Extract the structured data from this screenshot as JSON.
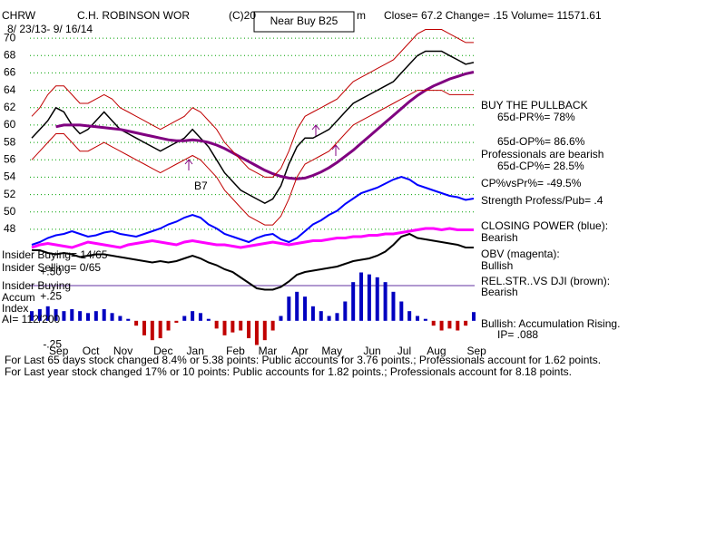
{
  "chart_data": {
    "type": "line",
    "ticker": "CHRW",
    "company": "C.H. ROBINSON WOR",
    "copyright": "(C)20",
    "signal": "Near Buy B25",
    "fragment": "m",
    "quote": "Close=  67.2  Change= .15 Volume= 11571.61",
    "date_range": "8/ 23/13- 9/ 16/14",
    "categories": [
      null,
      null,
      "Sep",
      null,
      null,
      null,
      "Oct",
      null,
      null,
      null,
      "Nov",
      null,
      null,
      null,
      null,
      "Dec",
      null,
      null,
      null,
      "Jan",
      null,
      null,
      null,
      null,
      "Feb",
      null,
      null,
      null,
      "Mar",
      null,
      null,
      null,
      "Apr",
      null,
      null,
      null,
      "May",
      null,
      null,
      null,
      null,
      "Jun",
      null,
      null,
      null,
      "Jul",
      null,
      null,
      null,
      "Aug",
      null,
      null,
      null,
      null,
      "Sep",
      null
    ],
    "ylim": [
      47,
      71
    ],
    "yticks": [
      48,
      50,
      52,
      54,
      56,
      58,
      60,
      62,
      64,
      66,
      68,
      70
    ],
    "grid": true,
    "y2lim": [
      0,
      100
    ],
    "series": [
      {
        "color": "#000000",
        "values": [
          58.5,
          59.5,
          60.5,
          62,
          61.5,
          60,
          59,
          59.5,
          60.5,
          61.5,
          60.5,
          59.5,
          59,
          58.5,
          58,
          57.5,
          57,
          57.5,
          58,
          58.5,
          59.5,
          58.5,
          57.5,
          56,
          54.5,
          53.5,
          52.5,
          52,
          51.5,
          51,
          51.5,
          53,
          55.5,
          57.5,
          58.5,
          58.5,
          59,
          59.5,
          60.5,
          61.5,
          62.5,
          63,
          63.5,
          64,
          64.5,
          65,
          66,
          67,
          68,
          68.5,
          68.5,
          68.5,
          68,
          67.5,
          67,
          67.2
        ]
      },
      {
        "color": "#800080",
        "values": [
          null,
          null,
          null,
          59.8,
          60,
          60,
          60,
          59.9,
          59.8,
          59.7,
          59.6,
          59.5,
          59.3,
          59.1,
          58.9,
          58.7,
          58.5,
          58.3,
          58.2,
          58.2,
          58.3,
          58.2,
          58,
          57.7,
          57.3,
          56.8,
          56.3,
          55.8,
          55.3,
          54.8,
          54.4,
          54.1,
          53.9,
          53.8,
          53.9,
          54.2,
          54.6,
          55.1,
          55.7,
          56.4,
          57.1,
          57.9,
          58.7,
          59.5,
          60.3,
          61.1,
          61.9,
          62.7,
          63.4,
          64,
          64.5,
          64.9,
          65.3,
          65.6,
          65.9,
          66.1
        ]
      },
      {
        "color": "#c00000",
        "values": [
          61,
          62,
          63.5,
          64.5,
          64.5,
          63.5,
          62.5,
          62.5,
          63,
          63.5,
          63,
          62,
          61.5,
          61,
          60.5,
          60,
          59.5,
          60,
          60.5,
          61,
          62,
          61.5,
          60.5,
          59.5,
          58,
          57,
          56,
          55,
          54.5,
          54,
          54,
          55,
          57,
          59.5,
          61,
          61.5,
          62,
          62.5,
          63,
          64,
          65,
          65.5,
          66,
          66.5,
          67,
          67.5,
          68.5,
          69.5,
          70.5,
          71,
          71,
          71,
          70.5,
          70,
          69.5,
          69.5
        ]
      },
      {
        "color": "#c00000",
        "values": [
          56,
          57,
          58,
          59,
          59,
          58,
          57,
          57,
          57.5,
          58,
          57.5,
          57,
          56.5,
          56,
          55.5,
          55,
          54.5,
          55,
          55.5,
          56,
          56.5,
          56,
          55,
          54,
          52.5,
          51.5,
          50.5,
          49.5,
          49,
          48.5,
          48.5,
          49.5,
          51.5,
          54,
          55.5,
          56,
          56.5,
          57,
          58,
          59,
          60,
          60.5,
          61,
          61.5,
          62,
          62.5,
          63,
          63.5,
          64,
          64,
          64,
          64,
          63.5,
          63.5,
          63.5,
          63.5
        ]
      },
      {
        "color": "#0000ff",
        "axis": "y2",
        "values": [
          40,
          42,
          45,
          47,
          48,
          50,
          48,
          46,
          47,
          49,
          50,
          48,
          47,
          46,
          48,
          50,
          52,
          55,
          57,
          60,
          62,
          60,
          55,
          52,
          48,
          46,
          44,
          42,
          45,
          47,
          48,
          44,
          42,
          45,
          50,
          55,
          58,
          62,
          65,
          70,
          74,
          78,
          80,
          82,
          85,
          88,
          90,
          88,
          84,
          82,
          80,
          78,
          76,
          75,
          73,
          74
        ]
      },
      {
        "color": "#ff00ff",
        "axis": "y2",
        "values": [
          38,
          40,
          41,
          40,
          39,
          38,
          40,
          42,
          41,
          40,
          39,
          38,
          40,
          41,
          42,
          43,
          42,
          41,
          40,
          42,
          43,
          42,
          41,
          40,
          40,
          39,
          38,
          39,
          40,
          41,
          42,
          41,
          40,
          41,
          42,
          43,
          43,
          44,
          45,
          45,
          46,
          46,
          47,
          47,
          48,
          48,
          49,
          50,
          51,
          52,
          52,
          51,
          52,
          51,
          51,
          51
        ]
      },
      {
        "color": "#000000",
        "axis": "y2",
        "values": [
          36,
          36,
          34,
          33,
          34,
          33,
          31,
          32,
          33,
          33,
          32,
          31,
          30,
          29,
          28,
          27,
          28,
          27,
          28,
          30,
          32,
          30,
          27,
          25,
          22,
          20,
          16,
          12,
          8,
          7,
          7,
          9,
          13,
          18,
          20,
          21,
          22,
          23,
          24,
          26,
          28,
          29,
          30,
          32,
          35,
          40,
          46,
          48,
          45,
          44,
          43,
          42,
          41,
          40,
          38,
          38
        ]
      }
    ],
    "accumulation": {
      "ylim": [
        -0.25,
        0.5
      ],
      "yticks": [
        {
          "value": 0.5,
          "label": "+.50"
        },
        {
          "value": 0.25,
          "label": "+.25"
        },
        {
          "value": -0.25,
          "label": "-.25"
        }
      ],
      "positive_color": "#0000c0",
      "negative_color": "#c00000",
      "values": [
        0.1,
        0.12,
        0.15,
        0.12,
        0.1,
        0.12,
        0.1,
        0.08,
        0.1,
        0.12,
        0.08,
        0.05,
        0.02,
        -0.05,
        -0.15,
        -0.2,
        -0.18,
        -0.1,
        -0.02,
        0.05,
        0.1,
        0.08,
        0.02,
        -0.08,
        -0.15,
        -0.12,
        -0.1,
        -0.18,
        -0.25,
        -0.2,
        -0.1,
        0.05,
        0.25,
        0.3,
        0.25,
        0.15,
        0.1,
        0.05,
        0.08,
        0.2,
        0.4,
        0.5,
        0.48,
        0.45,
        0.4,
        0.3,
        0.2,
        0.1,
        0.05,
        0.02,
        -0.05,
        -0.1,
        -0.08,
        -0.1,
        -0.05,
        0.09
      ]
    },
    "signal_marker": "B7",
    "annotations": [
      "BUY THE PULLBACK",
      "65d-PR%= 78%",
      "65d-OP%= 86.6%",
      "Professionals are bearish",
      "65d-CP%= 28.5%",
      "CP%vsPr%= -49.5%",
      "Strength Profess/Pub= .4",
      "CLOSING POWER (blue):",
      "Bearish",
      "OBV (magenta):",
      "Bullish",
      "REL.STR..VS DJI (brown):",
      "Bearish",
      "Bullish: Accumulation Rising.",
      "IP=  .088"
    ],
    "insider": [
      "Insider Buying= 14/65",
      "Insider Selling= 0/65",
      "Insider Buying",
      "Accum",
      "Index",
      "AI= 112/200"
    ],
    "notes": [
      "For Last 65 days stock changed  8.4% or  5.38 points:  Public accounts for  3.76 points.;  Professionals account for  1.62 points.",
      "For Last year stock changed  17% or  10 points:  Public accounts for  1.82 points.;  Professionals account for  8.18 points."
    ]
  }
}
